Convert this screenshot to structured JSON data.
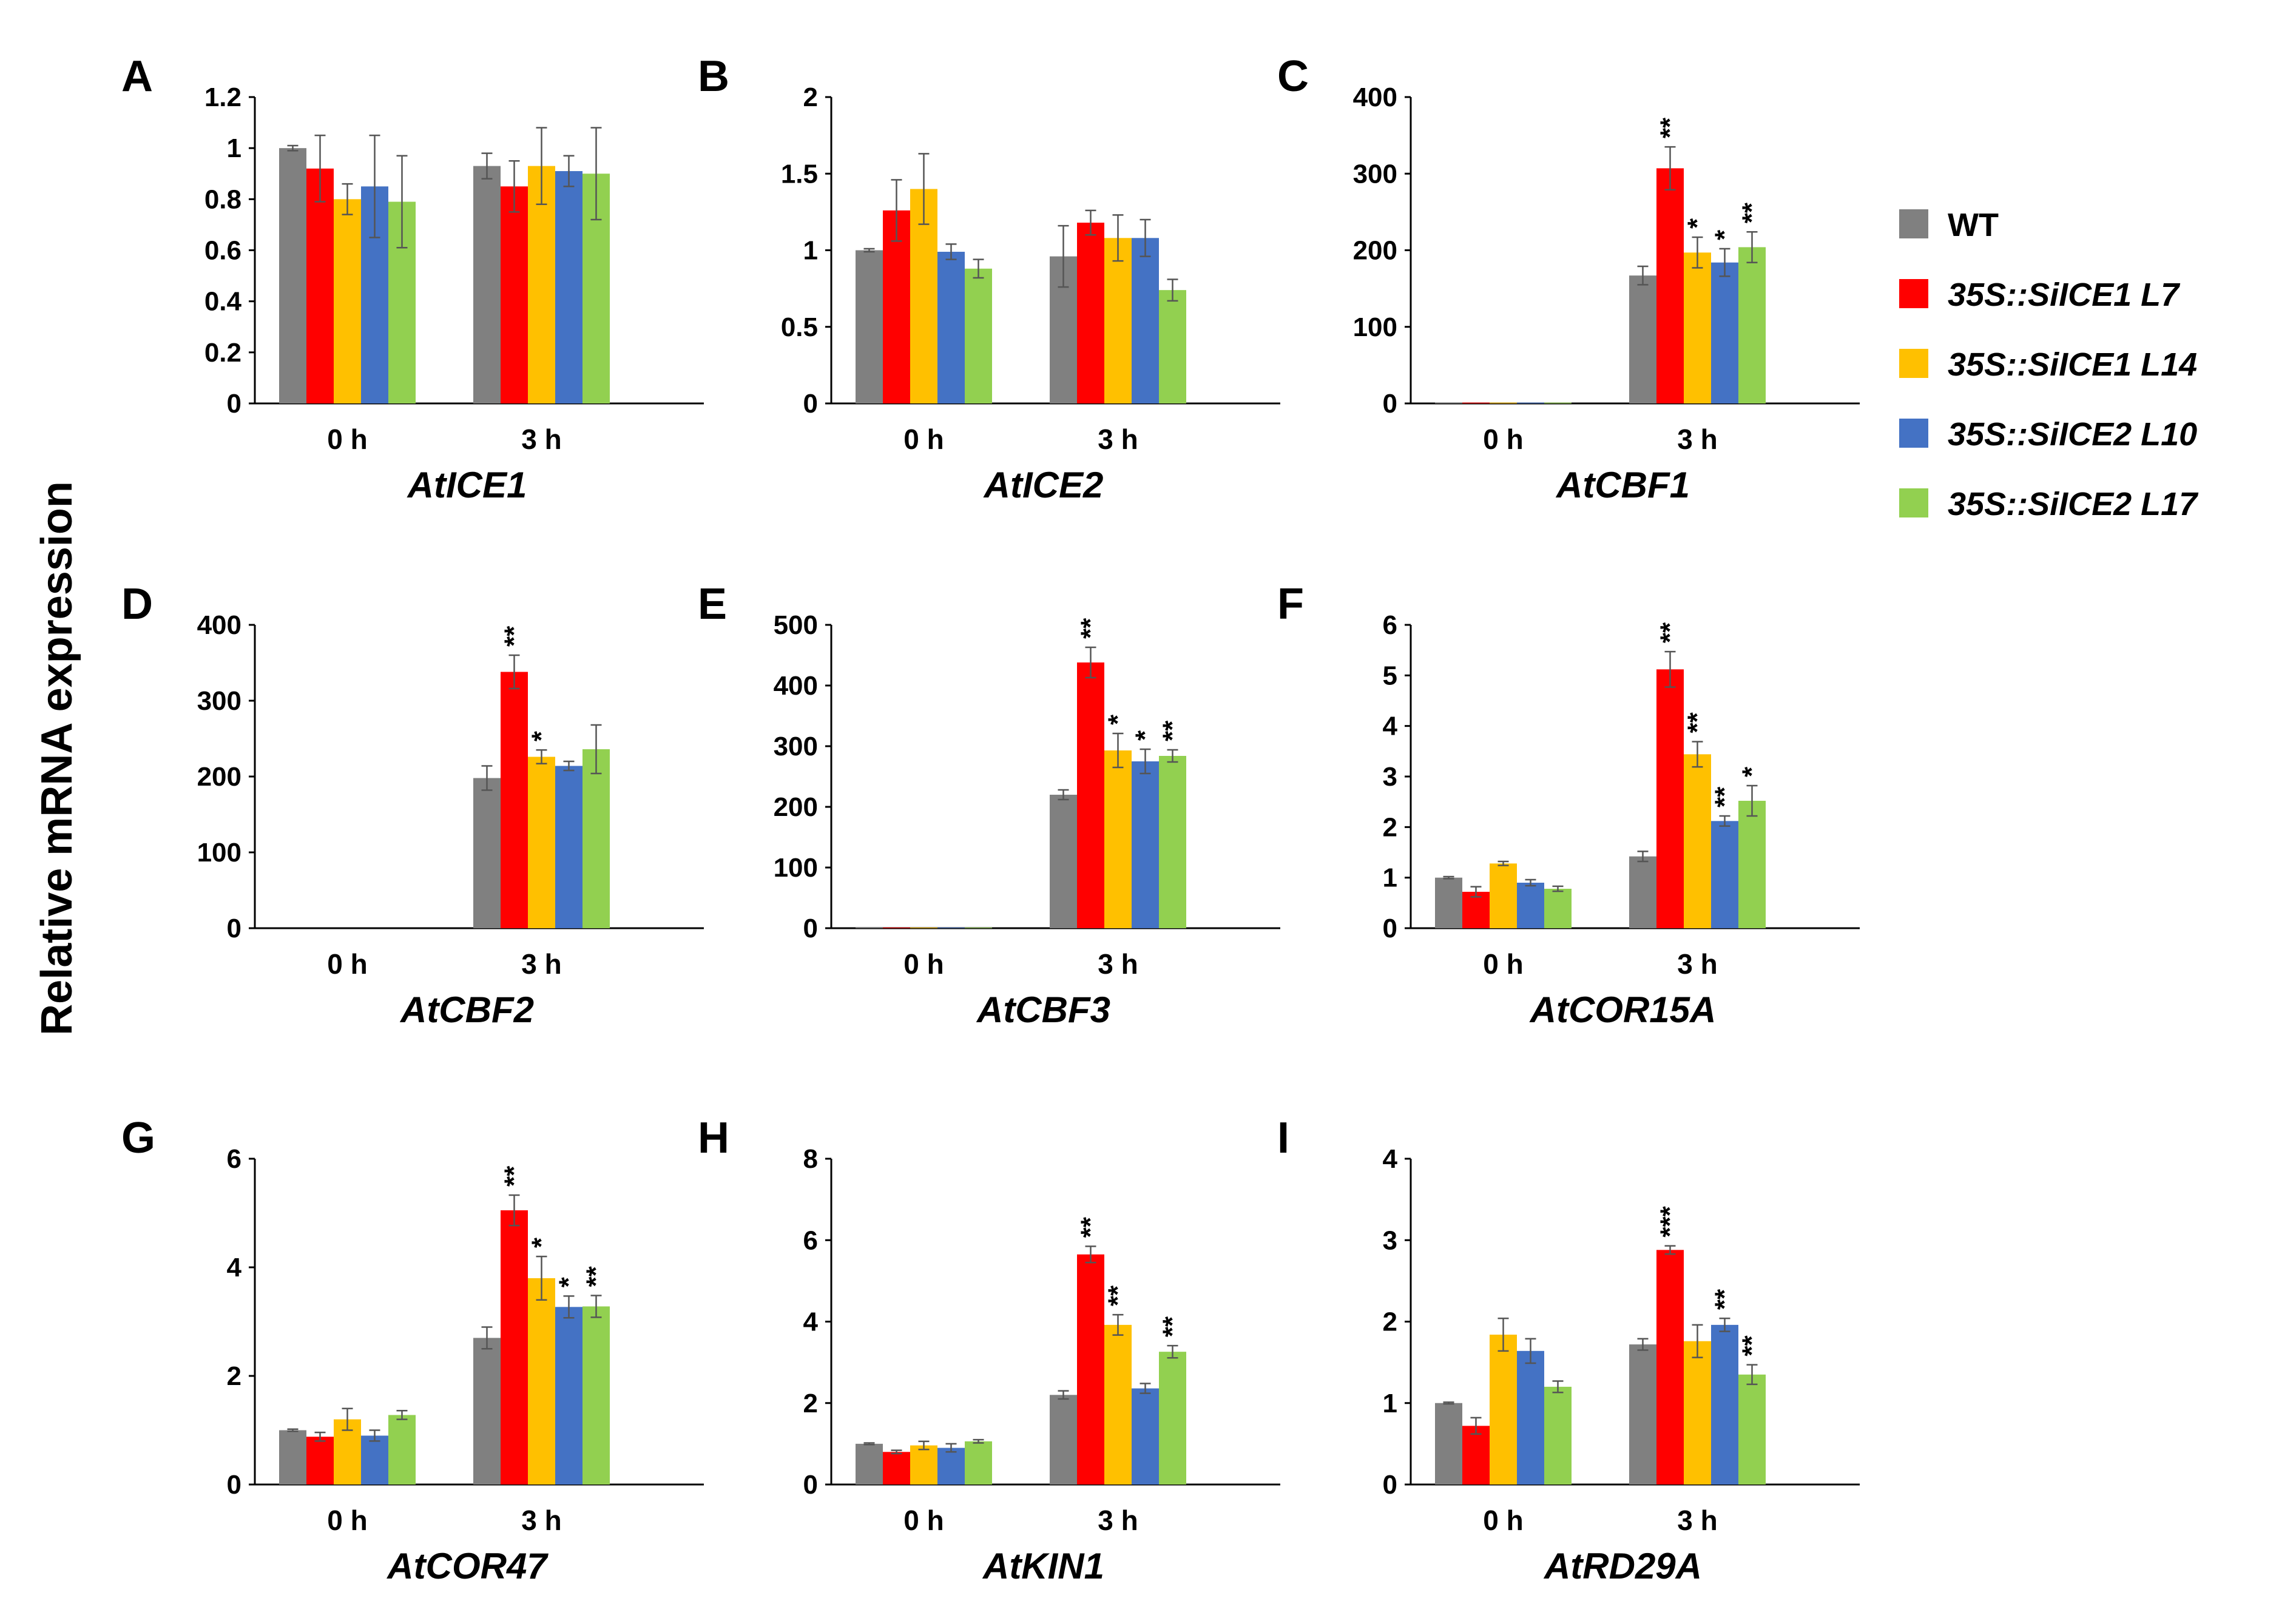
{
  "y_axis_label": "Relative mRNA expression",
  "colors": {
    "WT": "#808080",
    "L7": "#ff0000",
    "L14": "#ffc000",
    "L10": "#4472c4",
    "L17": "#92d050"
  },
  "legend": [
    {
      "key": "WT",
      "label": "WT",
      "color": "#808080",
      "italic": false
    },
    {
      "key": "L7",
      "label": "35S::SiICE1  L7",
      "color": "#ff0000",
      "italic": true
    },
    {
      "key": "L14",
      "label": "35S::SiICE1  L14",
      "color": "#ffc000",
      "italic": true
    },
    {
      "key": "L10",
      "label": "35S::SiICE2 L10",
      "color": "#4472c4",
      "italic": true
    },
    {
      "key": "L17",
      "label": "35S::SiICE2 L17",
      "color": "#92d050",
      "italic": true
    }
  ],
  "chart_data": [
    {
      "type": "bar",
      "panel": "A",
      "title": "AtICE1",
      "categories": [
        "0 h",
        "3 h"
      ],
      "ylim": [
        0,
        1.2
      ],
      "yticks": [
        "0",
        "0.2",
        "0.4",
        "0.6",
        "0.8",
        "1",
        "1.2"
      ],
      "ytick_values": [
        0,
        0.2,
        0.4,
        0.6,
        0.8,
        1,
        1.2
      ],
      "series": [
        {
          "name": "WT",
          "values": [
            1.0,
            0.93
          ],
          "errors": [
            0.01,
            0.05
          ],
          "stars": [
            "",
            ""
          ]
        },
        {
          "name": "35S::SiICE1 L7",
          "values": [
            0.92,
            0.85
          ],
          "errors": [
            0.13,
            0.1
          ],
          "stars": [
            "",
            ""
          ]
        },
        {
          "name": "35S::SiICE1 L14",
          "values": [
            0.8,
            0.93
          ],
          "errors": [
            0.06,
            0.15
          ],
          "stars": [
            "",
            ""
          ]
        },
        {
          "name": "35S::SiICE2 L10",
          "values": [
            0.85,
            0.91
          ],
          "errors": [
            0.2,
            0.06
          ],
          "stars": [
            "",
            ""
          ]
        },
        {
          "name": "35S::SiICE2 L17",
          "values": [
            0.79,
            0.9
          ],
          "errors": [
            0.18,
            0.18
          ],
          "stars": [
            "",
            ""
          ]
        }
      ]
    },
    {
      "type": "bar",
      "panel": "B",
      "title": "AtICE2",
      "categories": [
        "0 h",
        "3 h"
      ],
      "ylim": [
        0,
        2
      ],
      "yticks": [
        "0",
        "0.5",
        "1",
        "1.5",
        "2"
      ],
      "ytick_values": [
        0,
        0.5,
        1,
        1.5,
        2
      ],
      "series": [
        {
          "name": "WT",
          "values": [
            1.0,
            0.96
          ],
          "errors": [
            0.01,
            0.2
          ],
          "stars": [
            "",
            ""
          ]
        },
        {
          "name": "35S::SiICE1 L7",
          "values": [
            1.26,
            1.18
          ],
          "errors": [
            0.2,
            0.08
          ],
          "stars": [
            "",
            ""
          ]
        },
        {
          "name": "35S::SiICE1 L14",
          "values": [
            1.4,
            1.08
          ],
          "errors": [
            0.23,
            0.15
          ],
          "stars": [
            "",
            ""
          ]
        },
        {
          "name": "35S::SiICE2 L10",
          "values": [
            0.99,
            1.08
          ],
          "errors": [
            0.05,
            0.12
          ],
          "stars": [
            "",
            ""
          ]
        },
        {
          "name": "35S::SiICE2 L17",
          "values": [
            0.88,
            0.74
          ],
          "errors": [
            0.06,
            0.07
          ],
          "stars": [
            "",
            ""
          ]
        }
      ]
    },
    {
      "type": "bar",
      "panel": "C",
      "title": "AtCBF1",
      "categories": [
        "0 h",
        "3 h"
      ],
      "ylim": [
        0,
        400
      ],
      "yticks": [
        "0",
        "100",
        "200",
        "300",
        "400"
      ],
      "ytick_values": [
        0,
        100,
        200,
        300,
        400
      ],
      "series": [
        {
          "name": "WT",
          "values": [
            1,
            167
          ],
          "errors": [
            0,
            12
          ],
          "stars": [
            "",
            ""
          ]
        },
        {
          "name": "35S::SiICE1 L7",
          "values": [
            1,
            307
          ],
          "errors": [
            0,
            28
          ],
          "stars": [
            "",
            "**"
          ]
        },
        {
          "name": "35S::SiICE1 L14",
          "values": [
            1,
            197
          ],
          "errors": [
            0,
            20
          ],
          "stars": [
            "",
            "*"
          ]
        },
        {
          "name": "35S::SiICE2 L10",
          "values": [
            1,
            184
          ],
          "errors": [
            0,
            18
          ],
          "stars": [
            "",
            "*"
          ]
        },
        {
          "name": "35S::SiICE2 L17",
          "values": [
            1,
            204
          ],
          "errors": [
            0,
            20
          ],
          "stars": [
            "",
            "**"
          ]
        }
      ]
    },
    {
      "type": "bar",
      "panel": "D",
      "title": "AtCBF2",
      "categories": [
        "0 h",
        "3 h"
      ],
      "ylim": [
        0,
        400
      ],
      "yticks": [
        "0",
        "100",
        "200",
        "300",
        "400"
      ],
      "ytick_values": [
        0,
        100,
        200,
        300,
        400
      ],
      "series": [
        {
          "name": "WT",
          "values": [
            0,
            198
          ],
          "errors": [
            0,
            16
          ],
          "stars": [
            "",
            ""
          ]
        },
        {
          "name": "35S::SiICE1 L7",
          "values": [
            0,
            338
          ],
          "errors": [
            0,
            22
          ],
          "stars": [
            "",
            "**"
          ]
        },
        {
          "name": "35S::SiICE1 L14",
          "values": [
            0,
            226
          ],
          "errors": [
            0,
            9
          ],
          "stars": [
            "",
            "*"
          ]
        },
        {
          "name": "35S::SiICE2 L10",
          "values": [
            0,
            214
          ],
          "errors": [
            0,
            6
          ],
          "stars": [
            "",
            ""
          ]
        },
        {
          "name": "35S::SiICE2 L17",
          "values": [
            0,
            236
          ],
          "errors": [
            0,
            32
          ],
          "stars": [
            "",
            ""
          ]
        }
      ]
    },
    {
      "type": "bar",
      "panel": "E",
      "title": "AtCBF3",
      "categories": [
        "0 h",
        "3 h"
      ],
      "ylim": [
        0,
        500
      ],
      "yticks": [
        "0",
        "100",
        "200",
        "300",
        "400",
        "500"
      ],
      "ytick_values": [
        0,
        100,
        200,
        300,
        400,
        500
      ],
      "series": [
        {
          "name": "WT",
          "values": [
            1,
            220
          ],
          "errors": [
            0,
            8
          ],
          "stars": [
            "",
            ""
          ]
        },
        {
          "name": "35S::SiICE1 L7",
          "values": [
            1,
            438
          ],
          "errors": [
            0,
            25
          ],
          "stars": [
            "",
            "**"
          ]
        },
        {
          "name": "35S::SiICE1 L14",
          "values": [
            1,
            293
          ],
          "errors": [
            0,
            28
          ],
          "stars": [
            "",
            "*"
          ]
        },
        {
          "name": "35S::SiICE2 L10",
          "values": [
            1,
            275
          ],
          "errors": [
            0,
            20
          ],
          "stars": [
            "",
            "*"
          ]
        },
        {
          "name": "35S::SiICE2 L17",
          "values": [
            1,
            284
          ],
          "errors": [
            0,
            10
          ],
          "stars": [
            "",
            "**"
          ]
        }
      ]
    },
    {
      "type": "bar",
      "panel": "F",
      "title": "AtCOR15A",
      "categories": [
        "0 h",
        "3 h"
      ],
      "ylim": [
        0,
        6
      ],
      "yticks": [
        "0",
        "1",
        "2",
        "3",
        "4",
        "5",
        "6"
      ],
      "ytick_values": [
        0,
        1,
        2,
        3,
        4,
        5,
        6
      ],
      "series": [
        {
          "name": "WT",
          "values": [
            1.0,
            1.42
          ],
          "errors": [
            0.02,
            0.1
          ],
          "stars": [
            "",
            ""
          ]
        },
        {
          "name": "35S::SiICE1 L7",
          "values": [
            0.72,
            5.12
          ],
          "errors": [
            0.1,
            0.35
          ],
          "stars": [
            "",
            "**"
          ]
        },
        {
          "name": "35S::SiICE1 L14",
          "values": [
            1.28,
            3.44
          ],
          "errors": [
            0.04,
            0.25
          ],
          "stars": [
            "",
            "**"
          ]
        },
        {
          "name": "35S::SiICE2 L10",
          "values": [
            0.9,
            2.12
          ],
          "errors": [
            0.06,
            0.1
          ],
          "stars": [
            "",
            "**"
          ]
        },
        {
          "name": "35S::SiICE2 L17",
          "values": [
            0.78,
            2.52
          ],
          "errors": [
            0.05,
            0.3
          ],
          "stars": [
            "",
            "*"
          ]
        }
      ]
    },
    {
      "type": "bar",
      "panel": "G",
      "title": "AtCOR47",
      "categories": [
        "0 h",
        "3 h"
      ],
      "ylim": [
        0,
        6
      ],
      "yticks": [
        "0",
        "2",
        "4",
        "6"
      ],
      "ytick_values": [
        0,
        2,
        4,
        6
      ],
      "series": [
        {
          "name": "WT",
          "values": [
            1.0,
            2.7
          ],
          "errors": [
            0.02,
            0.2
          ],
          "stars": [
            "",
            ""
          ]
        },
        {
          "name": "35S::SiICE1 L7",
          "values": [
            0.88,
            5.05
          ],
          "errors": [
            0.08,
            0.28
          ],
          "stars": [
            "",
            "**"
          ]
        },
        {
          "name": "35S::SiICE1 L14",
          "values": [
            1.2,
            3.8
          ],
          "errors": [
            0.2,
            0.4
          ],
          "stars": [
            "",
            "*"
          ]
        },
        {
          "name": "35S::SiICE2 L10",
          "values": [
            0.9,
            3.27
          ],
          "errors": [
            0.1,
            0.2
          ],
          "stars": [
            "",
            "*"
          ]
        },
        {
          "name": "35S::SiICE2 L17",
          "values": [
            1.28,
            3.28
          ],
          "errors": [
            0.08,
            0.2
          ],
          "stars": [
            "",
            "**"
          ]
        }
      ]
    },
    {
      "type": "bar",
      "panel": "H",
      "title": "AtKIN1",
      "categories": [
        "0 h",
        "3 h"
      ],
      "ylim": [
        0,
        8
      ],
      "yticks": [
        "0",
        "2",
        "4",
        "6",
        "8"
      ],
      "ytick_values": [
        0,
        2,
        4,
        6,
        8
      ],
      "series": [
        {
          "name": "WT",
          "values": [
            1.0,
            2.2
          ],
          "errors": [
            0.02,
            0.1
          ],
          "stars": [
            "",
            ""
          ]
        },
        {
          "name": "35S::SiICE1 L7",
          "values": [
            0.8,
            5.65
          ],
          "errors": [
            0.04,
            0.2
          ],
          "stars": [
            "",
            "**"
          ]
        },
        {
          "name": "35S::SiICE1 L14",
          "values": [
            0.96,
            3.92
          ],
          "errors": [
            0.1,
            0.25
          ],
          "stars": [
            "",
            "**"
          ]
        },
        {
          "name": "35S::SiICE2 L10",
          "values": [
            0.9,
            2.36
          ],
          "errors": [
            0.1,
            0.12
          ],
          "stars": [
            "",
            ""
          ]
        },
        {
          "name": "35S::SiICE2 L17",
          "values": [
            1.06,
            3.26
          ],
          "errors": [
            0.04,
            0.15
          ],
          "stars": [
            "",
            "**"
          ]
        }
      ]
    },
    {
      "type": "bar",
      "panel": "I",
      "title": "AtRD29A",
      "categories": [
        "0 h",
        "3 h"
      ],
      "ylim": [
        0,
        4
      ],
      "yticks": [
        "0",
        "1",
        "2",
        "3",
        "4"
      ],
      "ytick_values": [
        0,
        1,
        2,
        3,
        4
      ],
      "series": [
        {
          "name": "WT",
          "values": [
            1.0,
            1.72
          ],
          "errors": [
            0.01,
            0.07
          ],
          "stars": [
            "",
            ""
          ]
        },
        {
          "name": "35S::SiICE1 L7",
          "values": [
            0.72,
            2.88
          ],
          "errors": [
            0.1,
            0.05
          ],
          "stars": [
            "",
            "***"
          ]
        },
        {
          "name": "35S::SiICE1 L14",
          "values": [
            1.84,
            1.76
          ],
          "errors": [
            0.2,
            0.2
          ],
          "stars": [
            "",
            ""
          ]
        },
        {
          "name": "35S::SiICE2 L10",
          "values": [
            1.64,
            1.96
          ],
          "errors": [
            0.15,
            0.08
          ],
          "stars": [
            "",
            "**"
          ]
        },
        {
          "name": "35S::SiICE2 L17",
          "values": [
            1.2,
            1.35
          ],
          "errors": [
            0.07,
            0.12
          ],
          "stars": [
            "",
            "**"
          ]
        }
      ]
    }
  ]
}
